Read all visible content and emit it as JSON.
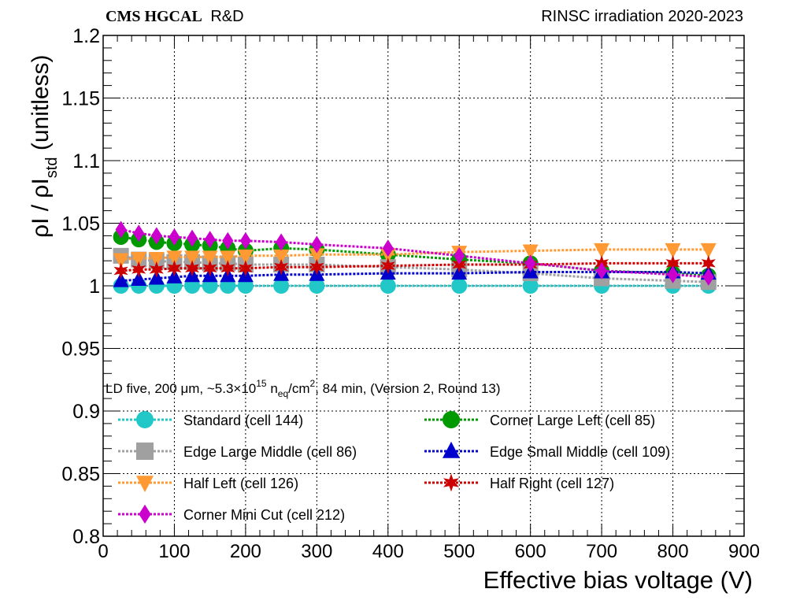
{
  "header": {
    "experiment": "CMS HGCAL",
    "experiment_suffix": "R&D",
    "campaign": "RINSC irradiation 2020-2023"
  },
  "annotation": {
    "prefix": "LD five, 200 μm, ~5.3×10",
    "exponent": "15",
    "middle": " n",
    "subscript": "eq",
    "unit": "/cm",
    "unit_exponent": "2",
    "suffix": ", 84 min, (Version 2, Round 13)"
  },
  "chart_data": {
    "type": "line",
    "title": "",
    "xlabel": "Effective bias voltage (V)",
    "ylabel": {
      "base": "ρI / ρI",
      "subscript": "std",
      "suffix": " (unitless)"
    },
    "xlim": [
      0,
      900
    ],
    "ylim": [
      0.8,
      1.2
    ],
    "x_ticks": [
      0,
      100,
      200,
      300,
      400,
      500,
      600,
      700,
      800,
      900
    ],
    "x_tick_labels": [
      "0",
      "100",
      "200",
      "300",
      "400",
      "500",
      "600",
      "700",
      "800",
      "900"
    ],
    "y_ticks": [
      0.8,
      0.85,
      0.9,
      0.95,
      1.0,
      1.05,
      1.1,
      1.15,
      1.2
    ],
    "y_tick_labels": [
      "0.8",
      "0.85",
      "0.9",
      "0.95",
      "1",
      "1.05",
      "1.1",
      "1.15",
      "1.2"
    ],
    "grid": true,
    "legend_position": "bottom-left",
    "x": [
      25,
      50,
      75,
      100,
      125,
      150,
      175,
      200,
      250,
      300,
      400,
      500,
      600,
      700,
      800,
      850
    ],
    "series": [
      {
        "name": "Standard (cell 144)",
        "color": "#22c8c8",
        "marker": "circle",
        "values": [
          1.0,
          1.0,
          1.0,
          1.0,
          1.0,
          1.0,
          1.0,
          1.0,
          1.0,
          1.0,
          1.0,
          1.0,
          1.0,
          1.0,
          1.0,
          1.0
        ]
      },
      {
        "name": "Corner Large Left (cell 85)",
        "color": "#009900",
        "marker": "circle",
        "values": [
          1.039,
          1.037,
          1.035,
          1.034,
          1.033,
          1.032,
          1.03,
          1.028,
          1.03,
          1.029,
          1.025,
          1.021,
          1.018,
          1.012,
          1.01,
          1.008
        ]
      },
      {
        "name": "Edge Large Middle (cell 86)",
        "color": "#a0a0a0",
        "marker": "square",
        "values": [
          1.024,
          1.021,
          1.02,
          1.019,
          1.019,
          1.018,
          1.018,
          1.017,
          1.017,
          1.017,
          1.015,
          1.013,
          1.01,
          1.006,
          1.004,
          1.003
        ]
      },
      {
        "name": "Edge Small Middle (cell 109)",
        "color": "#0000cc",
        "marker": "triangle-up",
        "values": [
          1.004,
          1.005,
          1.006,
          1.007,
          1.008,
          1.008,
          1.008,
          1.008,
          1.009,
          1.009,
          1.01,
          1.01,
          1.011,
          1.011,
          1.011,
          1.01
        ]
      },
      {
        "name": "Half Left (cell 126)",
        "color": "#ff9933",
        "marker": "triangle-down",
        "values": [
          1.021,
          1.022,
          1.022,
          1.023,
          1.023,
          1.023,
          1.023,
          1.024,
          1.024,
          1.025,
          1.025,
          1.027,
          1.028,
          1.029,
          1.029,
          1.029
        ]
      },
      {
        "name": "Half Right (cell 127)",
        "color": "#cc0000",
        "marker": "star",
        "values": [
          1.012,
          1.013,
          1.013,
          1.014,
          1.014,
          1.014,
          1.014,
          1.014,
          1.015,
          1.015,
          1.016,
          1.017,
          1.017,
          1.018,
          1.018,
          1.018
        ]
      },
      {
        "name": "Corner Mini Cut (cell 212)",
        "color": "#cc00cc",
        "marker": "diamond",
        "values": [
          1.045,
          1.042,
          1.04,
          1.039,
          1.038,
          1.037,
          1.036,
          1.036,
          1.035,
          1.033,
          1.03,
          1.024,
          1.018,
          1.012,
          1.009,
          1.007
        ]
      }
    ]
  }
}
